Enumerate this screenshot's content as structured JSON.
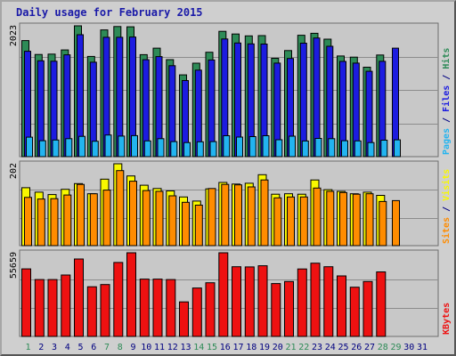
{
  "title": "Daily usage for February 2015",
  "colors": {
    "hits": "#2e8b57",
    "files": "#1c1ce0",
    "pages": "#22b4f0",
    "visits": "#f8f800",
    "sites": "#ff8c00",
    "kbytes": "#ee1111",
    "weekend_day": "#2e8b57",
    "weekday": "#000080",
    "panel": "#c8c8c8",
    "grid": "#8c8c8c"
  },
  "chart_data": [
    {
      "type": "bar",
      "panel": "top",
      "max_label": "2023",
      "ylim": [
        0,
        2023
      ],
      "right_label_parts": [
        {
          "text": "Pages",
          "color_key": "pages"
        },
        {
          "text": " / ",
          "color_key": "weekday"
        },
        {
          "text": "Files",
          "color_key": "files"
        },
        {
          "text": " / ",
          "color_key": "weekday"
        },
        {
          "text": "Hits",
          "color_key": "hits"
        }
      ],
      "categories": [
        "1",
        "2",
        "3",
        "4",
        "5",
        "6",
        "7",
        "8",
        "9",
        "10",
        "11",
        "12",
        "13",
        "14",
        "15",
        "16",
        "17",
        "18",
        "19",
        "20",
        "21",
        "22",
        "23",
        "24",
        "25",
        "26",
        "27",
        "28",
        "29",
        "30",
        "31"
      ],
      "series": [
        {
          "name": "Hits",
          "color_key": "hits",
          "values": [
            1795,
            1580,
            1585,
            1650,
            2023,
            1550,
            1960,
            2012,
            2008,
            1577,
            1677,
            1500,
            1265,
            1445,
            1614,
            1937,
            1897,
            1867,
            1872,
            1521,
            1641,
            1877,
            1907,
            1816,
            1557,
            1538,
            1383,
            1572,
            null,
            null,
            null
          ]
        },
        {
          "name": "Files",
          "color_key": "files",
          "values": [
            1630,
            1482,
            1475,
            1575,
            1885,
            1460,
            1845,
            1845,
            1850,
            1499,
            1547,
            1406,
            1177,
            1337,
            1494,
            1820,
            1758,
            1744,
            1741,
            1446,
            1518,
            1755,
            1835,
            1707,
            1472,
            1446,
            1320,
            1474,
            1678,
            null,
            null
          ]
        },
        {
          "name": "Pages",
          "color_key": "pages",
          "values": [
            301,
            247,
            258,
            278,
            314,
            238,
            335,
            318,
            325,
            243,
            278,
            233,
            217,
            230,
            233,
            324,
            303,
            309,
            323,
            262,
            317,
            242,
            282,
            278,
            247,
            244,
            217,
            254,
            260,
            null,
            null
          ]
        }
      ]
    },
    {
      "type": "bar",
      "panel": "middle",
      "max_label": "202",
      "ylim": [
        0,
        202
      ],
      "right_label_parts": [
        {
          "text": "Sites",
          "color_key": "sites"
        },
        {
          "text": " / ",
          "color_key": "weekday"
        },
        {
          "text": "Visits",
          "color_key": "visits"
        }
      ],
      "categories": [
        "1",
        "2",
        "3",
        "4",
        "5",
        "6",
        "7",
        "8",
        "9",
        "10",
        "11",
        "12",
        "13",
        "14",
        "15",
        "16",
        "17",
        "18",
        "19",
        "20",
        "21",
        "22",
        "23",
        "24",
        "25",
        "26",
        "27",
        "28",
        "29",
        "30",
        "31"
      ],
      "series": [
        {
          "name": "Visits",
          "color_key": "visits",
          "values": [
            143,
            132,
            126,
            139,
            153,
            128,
            164,
            202,
            172,
            149,
            141,
            135,
            120,
            110,
            140,
            156,
            152,
            154,
            175,
            127,
            128,
            127,
            162,
            138,
            134,
            128,
            132,
            124,
            null,
            null,
            null
          ]
        },
        {
          "name": "Sites",
          "color_key": "sites",
          "values": [
            119,
            115,
            116,
            125,
            151,
            128,
            137,
            185,
            159,
            136,
            134,
            123,
            107,
            100,
            141,
            151,
            150,
            145,
            162,
            118,
            120,
            120,
            142,
            134,
            131,
            127,
            128,
            109,
            111,
            null,
            null
          ]
        }
      ]
    },
    {
      "type": "bar",
      "panel": "bottom",
      "max_label": "55659",
      "ylim": [
        0,
        55659
      ],
      "right_label_parts": [
        {
          "text": "KBytes",
          "color_key": "kbytes"
        }
      ],
      "categories": [
        "1",
        "2",
        "3",
        "4",
        "5",
        "6",
        "7",
        "8",
        "9",
        "10",
        "11",
        "12",
        "13",
        "14",
        "15",
        "16",
        "17",
        "18",
        "19",
        "20",
        "21",
        "22",
        "23",
        "24",
        "25",
        "26",
        "27",
        "28",
        "29",
        "30",
        "31"
      ],
      "series": [
        {
          "name": "KBytes",
          "color_key": "kbytes",
          "values": [
            44928,
            37811,
            37837,
            40840,
            51508,
            33066,
            34506,
            49216,
            55659,
            38138,
            38141,
            37811,
            22981,
            32220,
            35690,
            55659,
            46352,
            46244,
            47031,
            35172,
            36530,
            44889,
            48728,
            46352,
            40270,
            32726,
            36530,
            42930,
            null,
            null,
            null
          ]
        }
      ]
    }
  ],
  "x_axis": {
    "days": [
      "1",
      "2",
      "3",
      "4",
      "5",
      "6",
      "7",
      "8",
      "9",
      "10",
      "11",
      "12",
      "13",
      "14",
      "15",
      "16",
      "17",
      "18",
      "19",
      "20",
      "21",
      "22",
      "23",
      "24",
      "25",
      "26",
      "27",
      "28",
      "29",
      "30",
      "31"
    ],
    "weekend_days": [
      "1",
      "7",
      "8",
      "14",
      "15",
      "21",
      "22",
      "28",
      "29"
    ]
  }
}
